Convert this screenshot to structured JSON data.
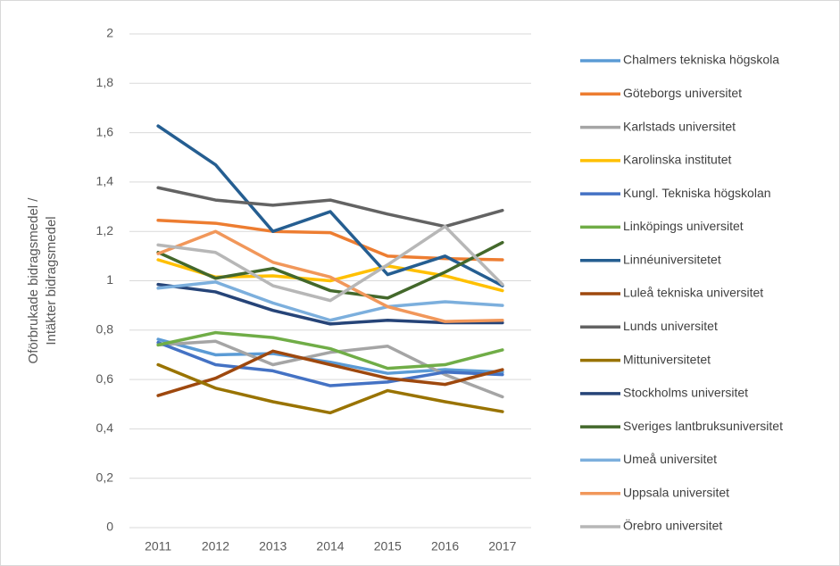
{
  "chart_data": {
    "type": "line",
    "ylabel": [
      "Oförbrukade bidragsmedel /",
      "Intäkter bidragsmedel"
    ],
    "categories": [
      "2011",
      "2012",
      "2013",
      "2014",
      "2015",
      "2016",
      "2017"
    ],
    "ylim": [
      0,
      2
    ],
    "yticks": [
      0,
      {
        "value": 0.2,
        "label": "0,2"
      },
      {
        "value": 0.4,
        "label": "0,4"
      },
      {
        "value": 0.6,
        "label": "0,6"
      },
      {
        "value": 0.8,
        "label": "0,8"
      },
      1,
      {
        "value": 1.2,
        "label": "1,2"
      },
      {
        "value": 1.4,
        "label": "1,4"
      },
      {
        "value": 1.6,
        "label": "1,6"
      },
      {
        "value": 1.8,
        "label": "1,8"
      },
      2
    ],
    "grid": true,
    "legend": "right",
    "series": [
      {
        "name": "Chalmers tekniska högskola",
        "color": "#5b9bd5",
        "values": [
          0.763,
          0.7,
          0.705,
          0.67,
          0.625,
          0.64,
          0.63
        ]
      },
      {
        "name": "Göteborgs universitet",
        "color": "#ed7d31",
        "values": [
          1.245,
          1.233,
          1.2,
          1.195,
          1.1,
          1.09,
          1.085
        ]
      },
      {
        "name": "Karlstads universitet",
        "color": "#a5a5a5",
        "values": [
          0.74,
          0.755,
          0.66,
          0.71,
          0.735,
          0.62,
          0.53
        ]
      },
      {
        "name": "Karolinska institutet",
        "color": "#ffc000",
        "values": [
          1.085,
          1.015,
          1.02,
          1.0,
          1.06,
          1.02,
          0.96
        ]
      },
      {
        "name": "Kungl. Tekniska högskolan",
        "color": "#4472c4",
        "values": [
          0.75,
          0.66,
          0.635,
          0.575,
          0.59,
          0.63,
          0.62
        ]
      },
      {
        "name": "Linköpings universitet",
        "color": "#70ad47",
        "values": [
          0.74,
          0.79,
          0.77,
          0.725,
          0.645,
          0.66,
          0.72
        ]
      },
      {
        "name": "Linnéuniversitetet",
        "color": "#255e91",
        "values": [
          1.627,
          1.47,
          1.2,
          1.28,
          1.025,
          1.1,
          0.98
        ]
      },
      {
        "name": "Luleå tekniska universitet",
        "color": "#9e480e",
        "values": [
          0.535,
          0.605,
          0.715,
          0.66,
          0.605,
          0.58,
          0.64
        ]
      },
      {
        "name": "Lunds universitet",
        "color": "#636363",
        "values": [
          1.377,
          1.327,
          1.306,
          1.327,
          1.27,
          1.22,
          1.285
        ]
      },
      {
        "name": "Mittuniversitetet",
        "color": "#997300",
        "values": [
          0.66,
          0.565,
          0.51,
          0.465,
          0.555,
          0.51,
          0.47
        ]
      },
      {
        "name": "Stockholms universitet",
        "color": "#264478",
        "values": [
          0.985,
          0.955,
          0.88,
          0.825,
          0.84,
          0.83,
          0.83
        ]
      },
      {
        "name": "Sveriges lantbruksuniversitet",
        "color": "#43682b",
        "values": [
          1.115,
          1.01,
          1.05,
          0.96,
          0.93,
          1.035,
          1.155
        ]
      },
      {
        "name": "Umeå universitet",
        "color": "#7cafdd",
        "values": [
          0.97,
          0.995,
          0.91,
          0.84,
          0.895,
          0.915,
          0.9
        ]
      },
      {
        "name": "Uppsala universitet",
        "color": "#f1975a",
        "values": [
          1.11,
          1.2,
          1.075,
          1.015,
          0.895,
          0.835,
          0.84
        ]
      },
      {
        "name": "Örebro universitet",
        "color": "#b7b7b7",
        "values": [
          1.145,
          1.115,
          0.98,
          0.92,
          1.065,
          1.22,
          0.985
        ]
      }
    ]
  }
}
